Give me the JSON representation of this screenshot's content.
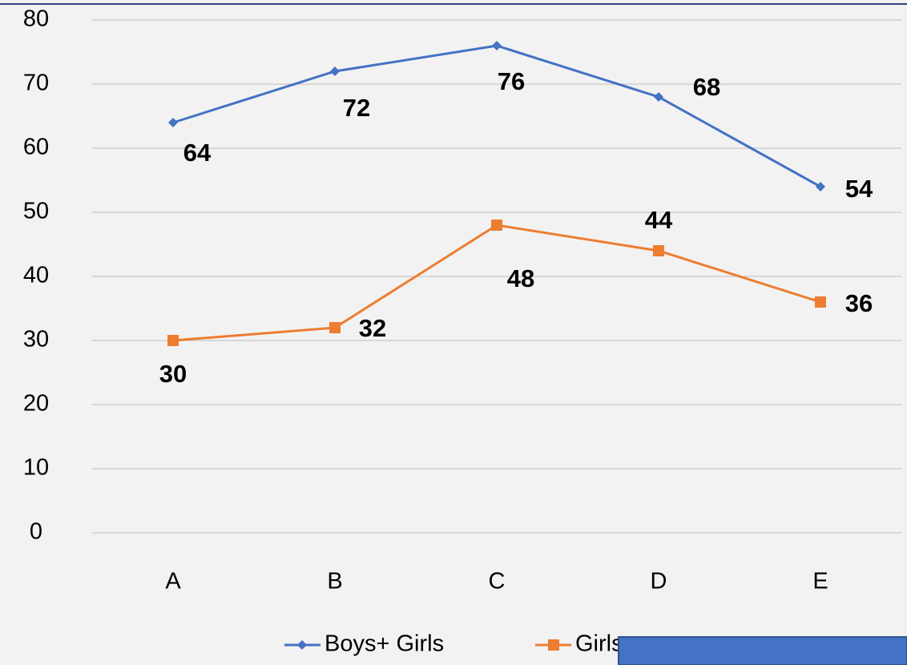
{
  "chart_data": {
    "type": "line",
    "categories": [
      "A",
      "B",
      "C",
      "D",
      "E"
    ],
    "series": [
      {
        "name": "Boys+ Girls",
        "color": "#4472c4",
        "marker": "diamond",
        "values": [
          64,
          72,
          76,
          68,
          54
        ]
      },
      {
        "name": "Girls",
        "color": "#ed7d31",
        "marker": "square",
        "values": [
          30,
          32,
          48,
          44,
          36
        ]
      }
    ],
    "ylim": [
      0,
      80
    ],
    "yticks": [
      0,
      10,
      20,
      30,
      40,
      50,
      60,
      70,
      80
    ],
    "grid": true,
    "legend": "bottom"
  }
}
